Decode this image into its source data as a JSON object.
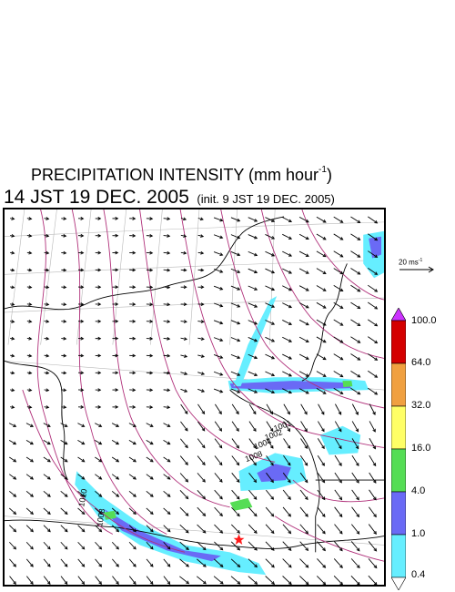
{
  "title": {
    "text": "PRECIPITATION INTENSITY (mm hour",
    "exponent": "-1",
    "close": ")"
  },
  "time": {
    "main": "14 JST 19 DEC. 2005",
    "init": "(init. 9 JST 19 DEC. 2005)"
  },
  "wind_scale": {
    "value_text": "20 ms",
    "exponent": "-1"
  },
  "legend": {
    "labels": [
      "100.0",
      "64.0",
      "32.0",
      "16.0",
      "4.0",
      "1.0",
      "0.4"
    ],
    "colors": [
      "#d40000",
      "#f0a040",
      "#ffff66",
      "#55dd55",
      "#6a6af5",
      "#66eeff",
      "#ffffff"
    ],
    "overflow_color": "#cc33ff"
  },
  "map": {
    "contour_color": "#b0307a",
    "arrow_color": "#000000",
    "contour_labels": [
      "1001",
      "1002",
      "1004",
      "1008",
      "1008",
      "1010"
    ]
  }
}
